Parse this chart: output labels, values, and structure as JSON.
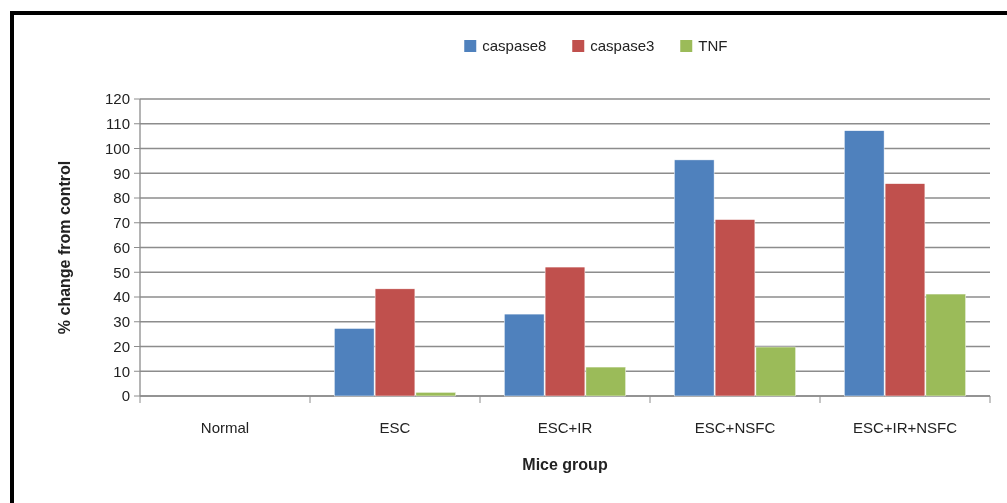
{
  "chart_data": {
    "type": "bar",
    "xlabel": "Mice group",
    "ylabel": "% change from control",
    "categories": [
      "Normal",
      "ESC",
      "ESC+IR",
      "ESC+NSFC",
      "ESC+IR+NSFC"
    ],
    "series": [
      {
        "name": "caspase8",
        "color": "#4f81bd",
        "values": [
          0,
          27.3,
          33.1,
          95.4,
          107.2
        ]
      },
      {
        "name": "caspase3",
        "color": "#c0504d",
        "values": [
          0,
          43.3,
          52.1,
          71.3,
          85.8
        ]
      },
      {
        "name": "TNF",
        "color": "#9bbb59",
        "values": [
          0,
          1.5,
          11.7,
          19.8,
          41.2
        ]
      }
    ],
    "ylim": [
      0,
      120
    ],
    "yticks": [
      0,
      10,
      20,
      30,
      40,
      50,
      60,
      70,
      80,
      90,
      100,
      110,
      120
    ],
    "grid": "y",
    "legend": "top"
  }
}
